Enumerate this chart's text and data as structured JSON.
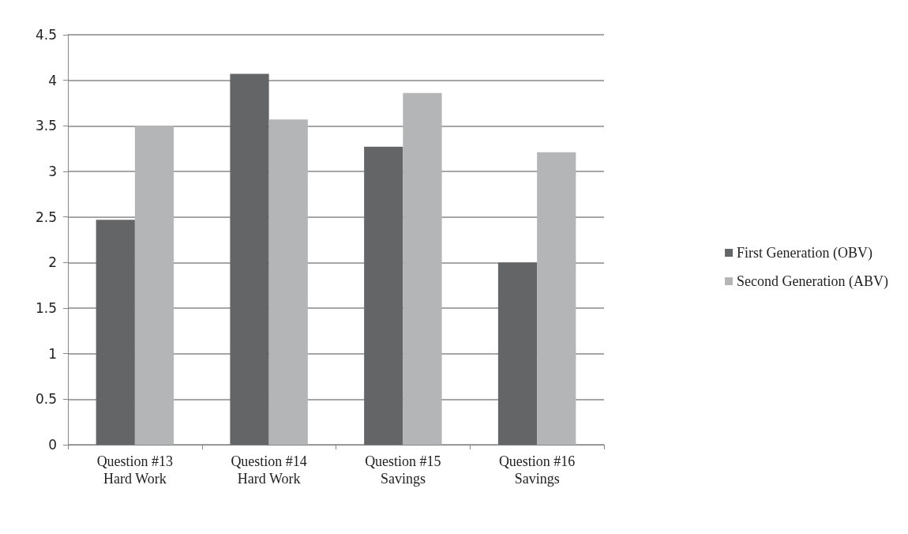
{
  "chart_data": {
    "type": "bar",
    "categories": [
      "Question #13\nHard Work",
      "Question #14\nHard Work",
      "Question #15\nSavings",
      "Question #16\nSavings"
    ],
    "series": [
      {
        "name": "First Generation (OBV)",
        "color": "#646567",
        "values": [
          2.47,
          4.07,
          3.27,
          2.0
        ]
      },
      {
        "name": "Second Generation (ABV)",
        "color": "#b4b5b7",
        "values": [
          3.5,
          3.57,
          3.86,
          3.21
        ]
      }
    ],
    "ylim": [
      0,
      4.5
    ],
    "yticks": [
      0,
      0.5,
      1,
      1.5,
      2,
      2.5,
      3,
      3.5,
      4,
      4.5
    ],
    "grid": "y",
    "legend": "right"
  }
}
